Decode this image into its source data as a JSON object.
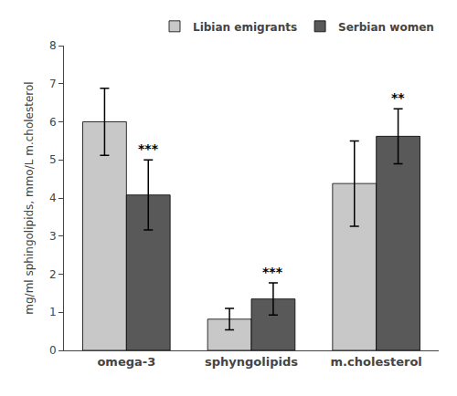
{
  "chart_data": {
    "type": "bar",
    "categories": [
      "omega-3",
      "sphyngolipids",
      "m.cholesterol"
    ],
    "series": [
      {
        "name": "Libian emigrants",
        "color": "#c8c8c8",
        "values": [
          6.0,
          0.82,
          4.38
        ],
        "errors": [
          0.88,
          0.28,
          1.12
        ]
      },
      {
        "name": "Serbian women",
        "color": "#595959",
        "values": [
          4.08,
          1.35,
          5.62
        ],
        "errors": [
          0.92,
          0.42,
          0.72
        ]
      }
    ],
    "annotations": [
      {
        "text": "***",
        "category": "omega-3",
        "series": "Serbian women"
      },
      {
        "text": "***",
        "category": "sphyngolipids",
        "series": "Serbian women"
      },
      {
        "text": "**",
        "category": "m.cholesterol",
        "series": "Serbian women"
      }
    ],
    "ylabel": "mg/ml sphingolipids, mmo/L m.cholesterol",
    "ylim": [
      0,
      8
    ],
    "yticks": [
      0,
      1,
      2,
      3,
      4,
      5,
      6,
      7,
      8
    ],
    "grid": false,
    "legend": "upper right"
  }
}
